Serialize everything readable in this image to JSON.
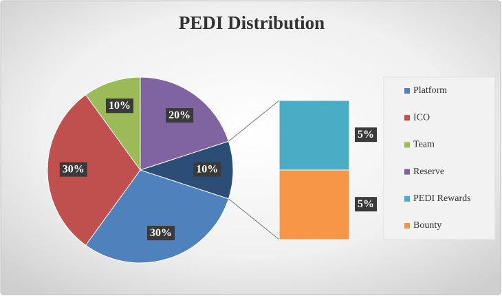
{
  "chart_data": {
    "type": "pie-of-bar",
    "title": "PEDI Distribution",
    "categories": [
      "Platform",
      "ICO",
      "Team",
      "Reserve",
      "PEDI Rewards",
      "Bounty"
    ],
    "values": [
      30,
      30,
      10,
      20,
      5,
      5
    ],
    "value_labels": [
      "30%",
      "30%",
      "10%",
      "20%",
      "5%",
      "5%"
    ],
    "colors": [
      "#4f81bd",
      "#c0504d",
      "#9bbb59",
      "#8064a2",
      "#4bacc6",
      "#f79646"
    ],
    "split_count": 2,
    "other_value": 10,
    "other_label": "10%",
    "other_color": "#2c4d75",
    "legend": "right"
  }
}
